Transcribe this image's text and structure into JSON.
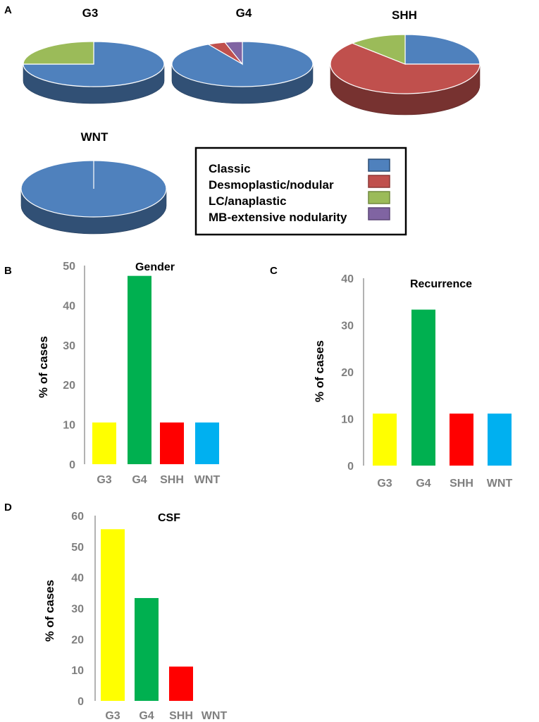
{
  "panels": {
    "a": "A",
    "b": "B",
    "c": "C",
    "d": "D"
  },
  "colors": {
    "classic": "#4f81bd",
    "desmoplastic": "#c0504d",
    "lc": "#9bbb59",
    "mbe": "#8064a2",
    "g3": "#ffff00",
    "g4": "#00b050",
    "shh": "#ff0000",
    "wnt": "#00b0f0",
    "axis": "#7f7f7f"
  },
  "legend": {
    "items": [
      {
        "key": "classic",
        "label": "Classic"
      },
      {
        "key": "desmoplastic",
        "label": "Desmoplastic/nodular"
      },
      {
        "key": "lc",
        "label": "LC/anaplastic"
      },
      {
        "key": "mbe",
        "label": "MB-extensive nodularity"
      }
    ]
  },
  "chart_data": [
    {
      "type": "pie",
      "panel": "A",
      "title": "G3",
      "slices": [
        {
          "label": "Classic",
          "key": "classic",
          "value": 75
        },
        {
          "label": "LC/anaplastic",
          "key": "lc",
          "value": 25
        }
      ]
    },
    {
      "type": "pie",
      "panel": "A",
      "title": "G4",
      "slices": [
        {
          "label": "Classic",
          "key": "classic",
          "value": 92
        },
        {
          "label": "Desmoplastic/nodular",
          "key": "desmoplastic",
          "value": 4
        },
        {
          "label": "MB-extensive nodularity",
          "key": "mbe",
          "value": 4
        }
      ]
    },
    {
      "type": "pie",
      "panel": "A",
      "title": "SHH",
      "slices": [
        {
          "label": "Classic",
          "key": "classic",
          "value": 25
        },
        {
          "label": "Desmoplastic/nodular",
          "key": "desmoplastic",
          "value": 62.5
        },
        {
          "label": "LC/anaplastic",
          "key": "lc",
          "value": 12.5
        }
      ]
    },
    {
      "type": "pie",
      "panel": "A",
      "title": "WNT",
      "slices": [
        {
          "label": "Classic",
          "key": "classic",
          "value": 100
        }
      ]
    },
    {
      "type": "bar",
      "panel": "B",
      "title": "Gender",
      "ylabel": "%  of cases",
      "ylim": [
        0,
        50
      ],
      "yticks": [
        "0",
        "10",
        "20",
        "30",
        "40",
        "50"
      ],
      "categories": [
        "G3",
        "G4",
        "SHH",
        "WNT"
      ],
      "values": [
        10.5,
        47.4,
        10.5,
        10.5
      ]
    },
    {
      "type": "bar",
      "panel": "C",
      "title": "Recurrence",
      "ylabel": "%  of cases",
      "ylim": [
        0,
        40
      ],
      "yticks": [
        "0",
        "10",
        "20",
        "30",
        "40"
      ],
      "categories": [
        "G3",
        "G4",
        "SHH",
        "WNT"
      ],
      "values": [
        11.1,
        33.3,
        11.1,
        11.1
      ]
    },
    {
      "type": "bar",
      "panel": "D",
      "title": "CSF",
      "ylabel": "%  of cases",
      "ylim": [
        0,
        60
      ],
      "yticks": [
        "0",
        "10",
        "20",
        "30",
        "40",
        "50",
        "60"
      ],
      "categories": [
        "G3",
        "G4",
        "SHH",
        "WNT"
      ],
      "values": [
        55.6,
        33.3,
        11.1,
        0
      ]
    }
  ]
}
